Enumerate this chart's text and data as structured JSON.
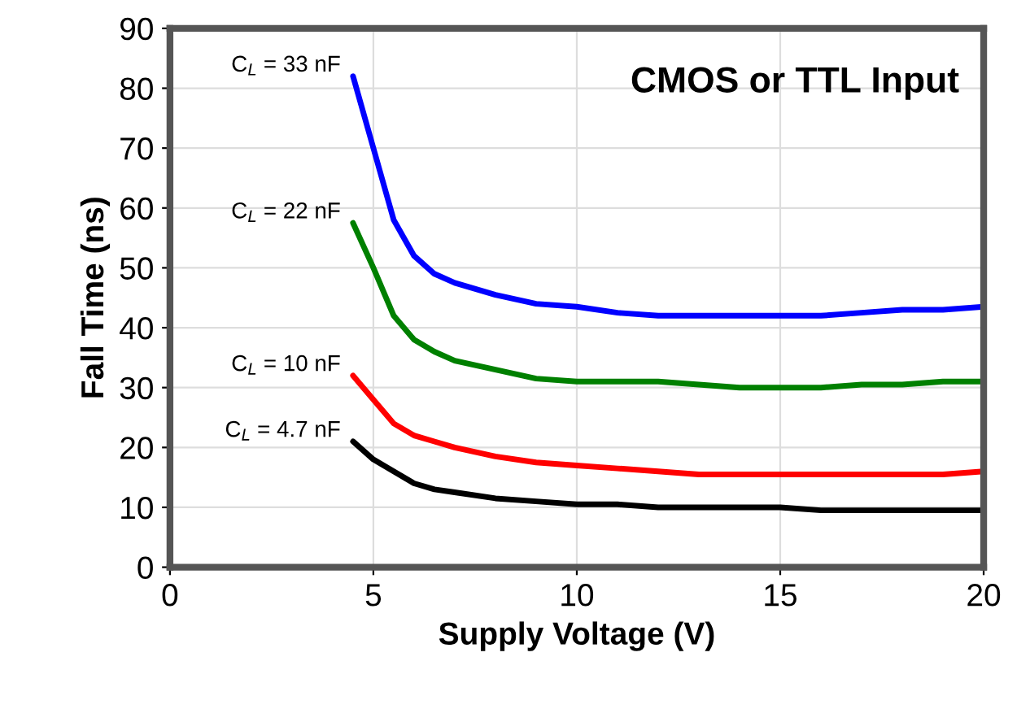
{
  "chart_data": {
    "type": "line",
    "title": "CMOS or TTL Input",
    "xlabel": "Supply Voltage (V)",
    "ylabel": "Fall Time (ns)",
    "xlim": [
      0,
      20
    ],
    "xticks": [
      0,
      5,
      10,
      15,
      20
    ],
    "ylim": [
      0,
      90
    ],
    "yticks": [
      0,
      10,
      20,
      30,
      40,
      50,
      60,
      70,
      80,
      90
    ],
    "grid": true,
    "x": [
      4.5,
      5,
      5.5,
      6,
      6.5,
      7,
      8,
      9,
      10,
      11,
      12,
      13,
      14,
      15,
      16,
      17,
      18,
      19,
      20
    ],
    "series": [
      {
        "name": "C$_{L}$ = 33 nF",
        "color": "#0000ff",
        "values": [
          82,
          70,
          58,
          52,
          49,
          47.5,
          45.5,
          44,
          43.5,
          42.5,
          42,
          42,
          42,
          42,
          42,
          42.5,
          43,
          43,
          43.5
        ]
      },
      {
        "name": "C$_{L}$ = 22 nF",
        "color": "#008000",
        "values": [
          57.5,
          50,
          42,
          38,
          36,
          34.5,
          33,
          31.5,
          31,
          31,
          31,
          30.5,
          30,
          30,
          30,
          30.5,
          30.5,
          31,
          31
        ]
      },
      {
        "name": "C$_{L}$ = 10 nF",
        "color": "#ff0000",
        "values": [
          32,
          28,
          24,
          22,
          21,
          20,
          18.5,
          17.5,
          17,
          16.5,
          16,
          15.5,
          15.5,
          15.5,
          15.5,
          15.5,
          15.5,
          15.5,
          16
        ]
      },
      {
        "name": "C$_{L}$ = 4.7 nF",
        "color": "#000000",
        "values": [
          21,
          18,
          16,
          14,
          13,
          12.5,
          11.5,
          11,
          10.5,
          10.5,
          10,
          10,
          10,
          10,
          9.5,
          9.5,
          9.5,
          9.5,
          9.5
        ]
      }
    ]
  }
}
